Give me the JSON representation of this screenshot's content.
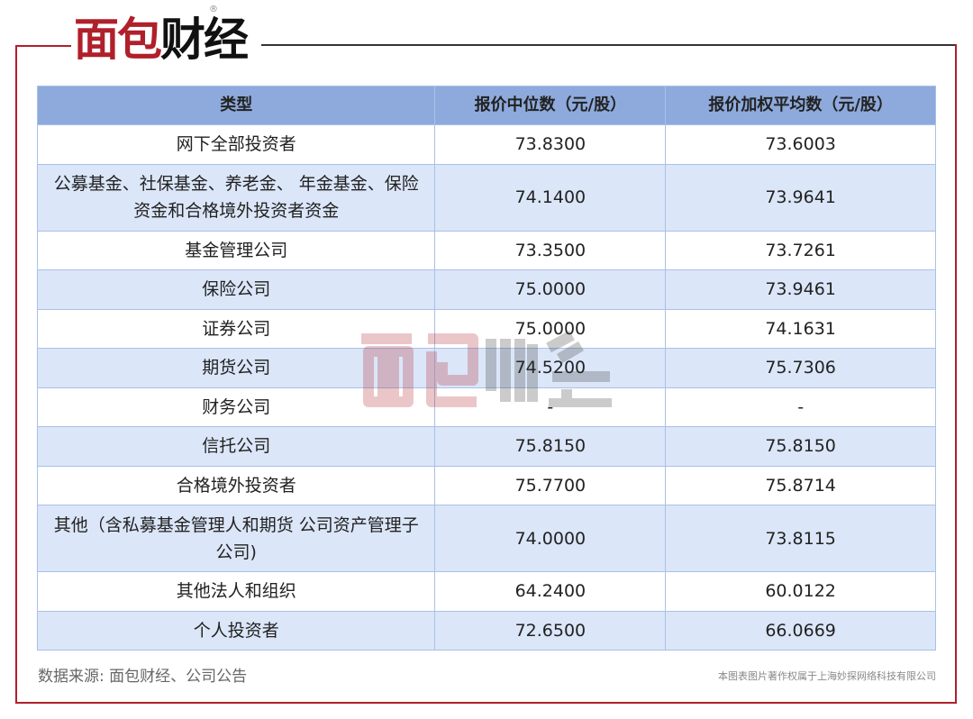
{
  "brand": {
    "logo_text_red": "面包",
    "logo_text_black": "财经",
    "registered": "®",
    "watermark_caption": "本图表图片著作权属于上海妙探网络科技有限公司"
  },
  "colors": {
    "accent_red": "#b0202a",
    "header_blue": "#8eaadc",
    "row_blue": "#dbe6f8"
  },
  "table": {
    "headers": [
      "类型",
      "报价中位数（元/股）",
      "报价加权平均数（元/股）"
    ],
    "rows": [
      {
        "type": "网下全部投资者",
        "median": "73.8300",
        "weighted": "73.6003"
      },
      {
        "type": "公募基金、社保基金、养老金、 年金基金、保险资金和合格境外投资者资金",
        "median": "74.1400",
        "weighted": "73.9641"
      },
      {
        "type": "基金管理公司",
        "median": "73.3500",
        "weighted": "73.7261"
      },
      {
        "type": "保险公司",
        "median": "75.0000",
        "weighted": "73.9461"
      },
      {
        "type": "证券公司",
        "median": "75.0000",
        "weighted": "74.1631"
      },
      {
        "type": "期货公司",
        "median": "74.5200",
        "weighted": "75.7306"
      },
      {
        "type": "财务公司",
        "median": "-",
        "weighted": "-"
      },
      {
        "type": "信托公司",
        "median": "75.8150",
        "weighted": "75.8150"
      },
      {
        "type": "合格境外投资者",
        "median": "75.7700",
        "weighted": "75.8714"
      },
      {
        "type": "其他（含私募基金管理人和期货 公司资产管理子公司)",
        "median": "74.0000",
        "weighted": "73.8115"
      },
      {
        "type": "其他法人和组织",
        "median": "64.2400",
        "weighted": "60.0122"
      },
      {
        "type": "个人投资者",
        "median": "72.6500",
        "weighted": "66.0669"
      }
    ]
  },
  "source": "数据来源: 面包财经、公司公告"
}
